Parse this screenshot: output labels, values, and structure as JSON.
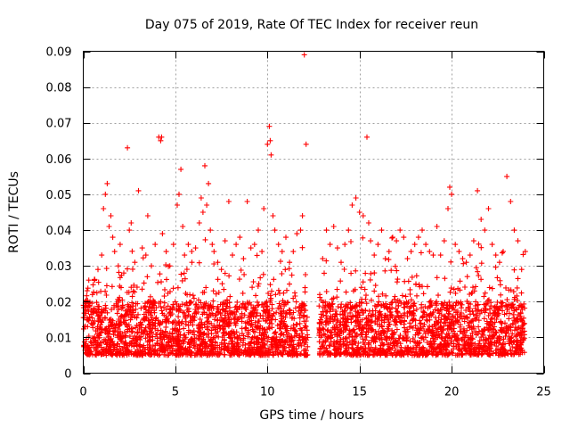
{
  "chart_data": {
    "type": "scatter",
    "title": "Day 075 of 2019, Rate Of TEC Index for receiver reun",
    "xlabel": "GPS time / hours",
    "ylabel": "ROTI / TECUs",
    "xlim": [
      0,
      25
    ],
    "ylim": [
      0,
      0.09
    ],
    "xticks": [
      0,
      5,
      10,
      15,
      20,
      25
    ],
    "xtick_labels": [
      "0",
      "5",
      "10",
      "15",
      "20",
      "25"
    ],
    "yticks": [
      0,
      0.01,
      0.02,
      0.03,
      0.04,
      0.05,
      0.06,
      0.07,
      0.08,
      0.09
    ],
    "ytick_labels": [
      "0",
      "0.01",
      "0.02",
      "0.03",
      "0.04",
      "0.05",
      "0.06",
      "0.07",
      "0.08",
      "0.09"
    ],
    "grid": true,
    "marker": "+",
    "color": "#ff0000",
    "gaps": [
      [
        12.2,
        12.8
      ]
    ],
    "series": [
      {
        "name": "ROTI",
        "dense_band": {
          "x_range": [
            0,
            24
          ],
          "y_typical": [
            0.005,
            0.02
          ],
          "count": 3500
        },
        "x": [
          0.3,
          0.5,
          0.8,
          1.0,
          1.1,
          1.2,
          1.3,
          1.4,
          1.5,
          1.6,
          1.7,
          1.9,
          2.0,
          2.2,
          2.4,
          2.5,
          2.6,
          2.8,
          3.0,
          3.2,
          3.4,
          3.5,
          3.7,
          3.9,
          4.1,
          4.2,
          4.25,
          4.3,
          4.5,
          4.7,
          4.9,
          5.1,
          5.2,
          5.3,
          5.4,
          5.5,
          5.7,
          5.9,
          6.1,
          6.3,
          6.4,
          6.5,
          6.6,
          6.7,
          6.8,
          6.9,
          7.0,
          7.1,
          7.3,
          7.5,
          7.7,
          7.9,
          8.1,
          8.3,
          8.5,
          8.7,
          8.9,
          9.1,
          9.3,
          9.5,
          9.7,
          9.8,
          10.0,
          10.1,
          10.15,
          10.2,
          10.3,
          10.4,
          10.6,
          10.8,
          11.0,
          11.2,
          11.4,
          11.6,
          11.8,
          11.9,
          12.0,
          12.1,
          13.0,
          13.2,
          13.4,
          13.6,
          13.8,
          14.0,
          14.2,
          14.4,
          14.6,
          14.8,
          15.0,
          15.2,
          15.4,
          15.5,
          15.6,
          15.8,
          16.0,
          16.2,
          16.4,
          16.6,
          16.8,
          17.0,
          17.2,
          17.4,
          17.6,
          17.8,
          18.0,
          18.2,
          18.4,
          18.6,
          18.8,
          19.0,
          19.2,
          19.4,
          19.6,
          19.8,
          19.9,
          20.0,
          20.2,
          20.4,
          20.6,
          20.8,
          21.0,
          21.2,
          21.4,
          21.6,
          21.8,
          22.0,
          22.2,
          22.4,
          22.6,
          22.8,
          23.0,
          23.2,
          23.4,
          23.6,
          23.8,
          24.0
        ],
        "y": [
          0.026,
          0.022,
          0.029,
          0.033,
          0.046,
          0.05,
          0.053,
          0.041,
          0.044,
          0.038,
          0.034,
          0.03,
          0.036,
          0.028,
          0.063,
          0.04,
          0.042,
          0.031,
          0.051,
          0.035,
          0.033,
          0.044,
          0.03,
          0.036,
          0.066,
          0.065,
          0.066,
          0.039,
          0.034,
          0.03,
          0.036,
          0.047,
          0.05,
          0.057,
          0.041,
          0.033,
          0.036,
          0.031,
          0.035,
          0.042,
          0.049,
          0.045,
          0.058,
          0.047,
          0.053,
          0.04,
          0.036,
          0.034,
          0.031,
          0.029,
          0.037,
          0.048,
          0.033,
          0.036,
          0.038,
          0.032,
          0.048,
          0.035,
          0.036,
          0.04,
          0.034,
          0.046,
          0.064,
          0.069,
          0.065,
          0.061,
          0.044,
          0.04,
          0.036,
          0.034,
          0.038,
          0.031,
          0.034,
          0.039,
          0.04,
          0.044,
          0.089,
          0.064,
          0.032,
          0.04,
          0.036,
          0.041,
          0.035,
          0.031,
          0.036,
          0.04,
          0.047,
          0.049,
          0.045,
          0.044,
          0.066,
          0.042,
          0.037,
          0.033,
          0.036,
          0.04,
          0.032,
          0.034,
          0.038,
          0.037,
          0.04,
          0.038,
          0.032,
          0.034,
          0.036,
          0.038,
          0.04,
          0.036,
          0.034,
          0.033,
          0.041,
          0.033,
          0.037,
          0.046,
          0.052,
          0.05,
          0.036,
          0.034,
          0.032,
          0.031,
          0.033,
          0.037,
          0.051,
          0.043,
          0.04,
          0.046,
          0.036,
          0.033,
          0.031,
          0.034,
          0.055,
          0.048,
          0.04,
          0.037,
          0.029,
          0.034
        ]
      }
    ]
  }
}
